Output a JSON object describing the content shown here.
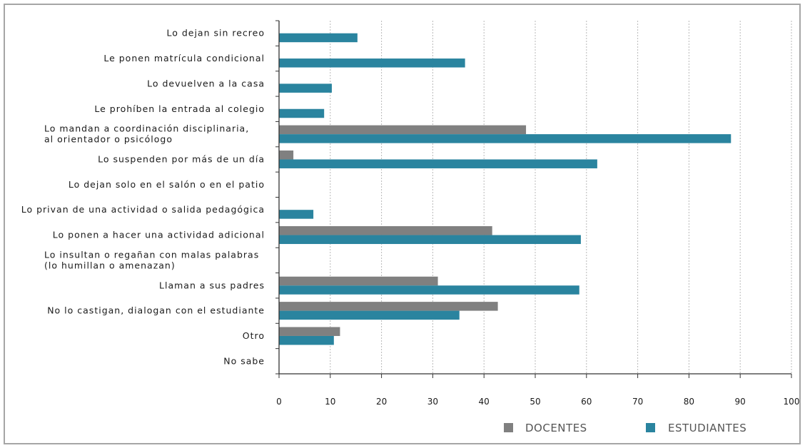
{
  "chart_data": {
    "type": "bar",
    "orientation": "horizontal",
    "categories": [
      [
        "Lo dejan sin recreo"
      ],
      [
        "Le ponen matrícula condicional"
      ],
      [
        "Lo devuelven a la casa"
      ],
      [
        "Le prohíben la entrada al colegio"
      ],
      [
        "Lo mandan a coordinación disciplinaria,",
        "al orientador o psicólogo"
      ],
      [
        "Lo suspenden por más de un día"
      ],
      [
        "Lo dejan solo en el salón o en el patio"
      ],
      [
        "Lo privan de una actividad o salida pedagógica"
      ],
      [
        "Lo ponen a hacer una actividad adicional"
      ],
      [
        "Lo insultan o regañan con malas palabras",
        "(lo humillan o amenazan)"
      ],
      [
        "Llaman a sus padres"
      ],
      [
        "No lo castigan, dialogan con el estudiante"
      ],
      [
        "Otro"
      ],
      [
        "No sabe"
      ]
    ],
    "series": [
      {
        "name": "DOCENTES",
        "color": "#808080",
        "values": [
          0,
          0,
          0,
          0,
          48.2,
          2.8,
          0,
          0,
          41.6,
          0,
          31.0,
          42.7,
          11.9,
          0
        ]
      },
      {
        "name": "ESTUDIANTES",
        "color": "#2a849f",
        "values": [
          15.3,
          36.3,
          10.3,
          8.8,
          88.2,
          62.1,
          0,
          6.7,
          58.9,
          0,
          58.6,
          35.2,
          10.7,
          0
        ]
      }
    ],
    "xlim": [
      0,
      100
    ],
    "xticks": [
      0,
      10,
      20,
      30,
      40,
      50,
      60,
      70,
      80,
      90,
      100
    ],
    "grid": true,
    "legend_position": "bottom-right",
    "title": "",
    "xlabel": "",
    "ylabel": ""
  }
}
